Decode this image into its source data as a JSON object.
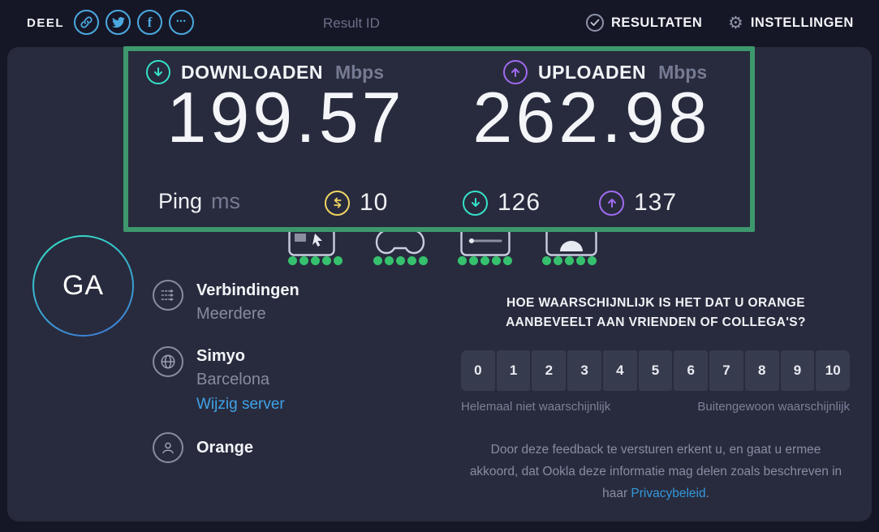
{
  "topbar": {
    "deel": "DEEL",
    "facebook_glyph": "f",
    "more_glyph": "•••",
    "result_id": "Result ID",
    "results": "RESULTATEN",
    "settings": "INSTELLINGEN",
    "gear_glyph": "⚙"
  },
  "speed": {
    "download": {
      "label": "DOWNLOADEN",
      "unit": "Mbps",
      "value": "199.57"
    },
    "upload": {
      "label": "UPLOADEN",
      "unit": "Mbps",
      "value": "262.98"
    },
    "ping": {
      "label": "Ping",
      "unit": "ms",
      "idle": "10",
      "download": "126",
      "upload": "137"
    }
  },
  "ratings": {
    "apps": [
      "browsing",
      "gaming",
      "streaming",
      "video-chat"
    ],
    "dots_per_app": 5
  },
  "user": {
    "avatar_initials": "GA"
  },
  "info": {
    "connections": {
      "title": "Verbindingen",
      "value": "Meerdere"
    },
    "server": {
      "name": "Simyo",
      "location": "Barcelona",
      "change_label": "Wijzig server"
    },
    "isp": {
      "name": "Orange"
    }
  },
  "survey": {
    "question_line1": "HOE WAARSCHIJNLIJK IS HET DAT U ORANGE",
    "question_line2": "AANBEVEELT AAN VRIENDEN OF COLLEGA'S?",
    "scale": [
      "0",
      "1",
      "2",
      "3",
      "4",
      "5",
      "6",
      "7",
      "8",
      "9",
      "10"
    ],
    "low_label": "Helemaal niet waarschijnlijk",
    "high_label": "Buitengewoon waarschijnlijk",
    "disclaimer_before": "Door deze feedback te versturen erkent u, en gaat u ermee akkoord, dat Ookla deze informatie mag delen zoals beschreven in haar ",
    "privacy_link": "Privacybeleid",
    "disclaimer_after": "."
  },
  "colors": {
    "highlight_green": "#3d986d",
    "download_teal": "#35e0c8",
    "upload_purple": "#a06bf0",
    "ping_yellow": "#efd463",
    "share_blue": "#4ba9e0",
    "link_blue": "#3498db",
    "dot_green": "#36c16e",
    "panel_bg": "#282b3d",
    "page_bg": "#161726"
  }
}
